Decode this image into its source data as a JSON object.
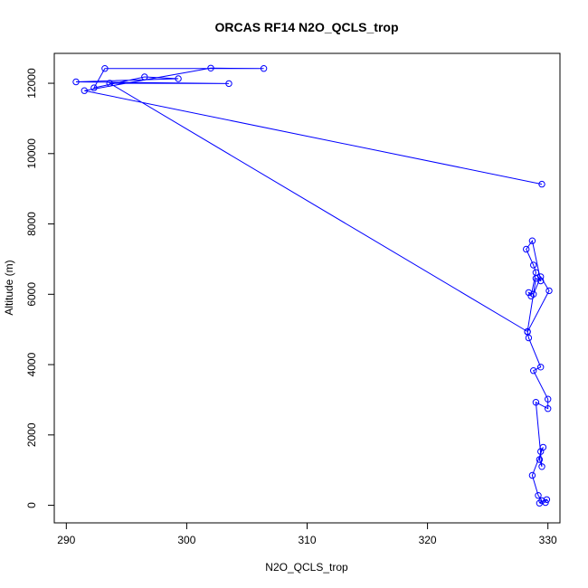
{
  "chart_data": {
    "type": "line",
    "title": "ORCAS RF14 N2O_QCLS_trop",
    "xlabel": "N2O_QCLS_trop",
    "ylabel": "Altitude (m)",
    "xlim": [
      289,
      331
    ],
    "ylim": [
      -500,
      12850
    ],
    "x_ticks": [
      290,
      300,
      310,
      320,
      330
    ],
    "y_ticks": [
      0,
      2000,
      4000,
      6000,
      8000,
      10000,
      12000
    ],
    "grid": false,
    "markers": "open-circle",
    "line_color": "#0000ff",
    "series": [
      {
        "x": [
          329.8,
          329.9,
          329.3,
          329.5,
          329.2,
          328.7,
          329.6,
          329.4,
          329.3,
          329.5,
          329.0,
          330.0,
          330.0,
          328.8,
          329.4,
          328.4,
          328.3,
          330.1,
          329.4,
          328.8,
          328.4,
          328.6,
          329.0,
          328.8,
          328.2,
          328.7,
          329.4,
          329.0,
          328.3,
          293.6,
          303.5,
          290.8,
          299.3,
          296.5,
          292.3,
          293.2,
          306.4,
          302.0,
          291.5,
          329.5
        ],
        "y": [
          80,
          160,
          60,
          130,
          280,
          850,
          1650,
          1530,
          1300,
          1100,
          2930,
          2750,
          3020,
          3830,
          3930,
          4760,
          4930,
          6100,
          6500,
          6000,
          6050,
          5950,
          6620,
          6830,
          7280,
          7520,
          6380,
          6450,
          4940,
          12000,
          11990,
          12040,
          12130,
          12180,
          11870,
          12420,
          12420,
          12430,
          11790,
          9130
        ]
      }
    ]
  }
}
